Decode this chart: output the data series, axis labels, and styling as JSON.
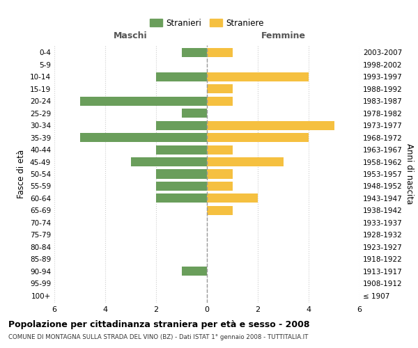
{
  "age_groups": [
    "100+",
    "95-99",
    "90-94",
    "85-89",
    "80-84",
    "75-79",
    "70-74",
    "65-69",
    "60-64",
    "55-59",
    "50-54",
    "45-49",
    "40-44",
    "35-39",
    "30-34",
    "25-29",
    "20-24",
    "15-19",
    "10-14",
    "5-9",
    "0-4"
  ],
  "birth_years": [
    "≤ 1907",
    "1908-1912",
    "1913-1917",
    "1918-1922",
    "1923-1927",
    "1928-1932",
    "1933-1937",
    "1938-1942",
    "1943-1947",
    "1948-1952",
    "1953-1957",
    "1958-1962",
    "1963-1967",
    "1968-1972",
    "1973-1977",
    "1978-1982",
    "1983-1987",
    "1988-1992",
    "1993-1997",
    "1998-2002",
    "2003-2007"
  ],
  "males": [
    0,
    0,
    1,
    0,
    0,
    0,
    0,
    0,
    2,
    2,
    2,
    3,
    2,
    5,
    2,
    1,
    5,
    0,
    2,
    0,
    1
  ],
  "females": [
    0,
    0,
    0,
    0,
    0,
    0,
    0,
    1,
    2,
    1,
    1,
    3,
    1,
    4,
    5,
    0,
    1,
    1,
    4,
    0,
    1
  ],
  "male_color": "#6a9e5b",
  "female_color": "#f5c040",
  "grid_color": "#cccccc",
  "title": "Popolazione per cittadinanza straniera per età e sesso - 2008",
  "subtitle": "COMUNE DI MONTAGNA SULLA STRADA DEL VINO (BZ) - Dati ISTAT 1° gennaio 2008 - TUTTITALIA.IT",
  "xlabel_left": "Maschi",
  "xlabel_right": "Femmine",
  "ylabel": "Fasce di età",
  "ylabel_right": "Anni di nascita",
  "legend_male": "Stranieri",
  "legend_female": "Straniere",
  "xlim": 6,
  "bar_height": 0.75
}
